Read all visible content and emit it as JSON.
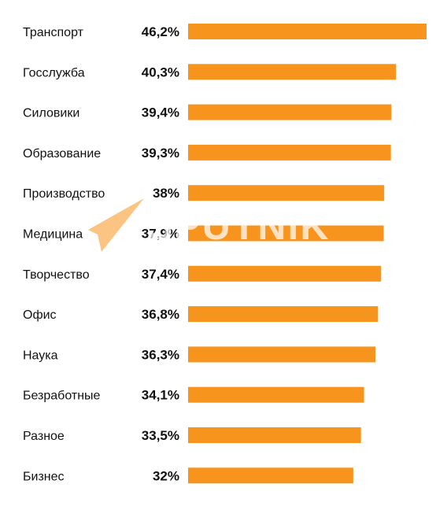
{
  "chart_data": {
    "type": "bar",
    "orientation": "horizontal",
    "categories": [
      "Транспорт",
      "Госслужба",
      "Силовики",
      "Образование",
      "Производство",
      "Медицина",
      "Творчество",
      "Офис",
      "Наука",
      "Безработные",
      "Разное",
      "Бизнес"
    ],
    "values": [
      46.2,
      40.3,
      39.4,
      39.3,
      38,
      37.9,
      37.4,
      36.8,
      36.3,
      34.1,
      33.5,
      32
    ],
    "value_labels": [
      "46,2%",
      "40,3%",
      "39,4%",
      "39,3%",
      "38%",
      "37,9%",
      "37,4%",
      "36,8%",
      "36,3%",
      "34,1%",
      "33,5%",
      "32%"
    ],
    "unit": "%",
    "bar_color": "#F7941D",
    "xlim": [
      0,
      46.2
    ],
    "grid": false,
    "legend": "none",
    "watermark": "SPUTNIK"
  }
}
